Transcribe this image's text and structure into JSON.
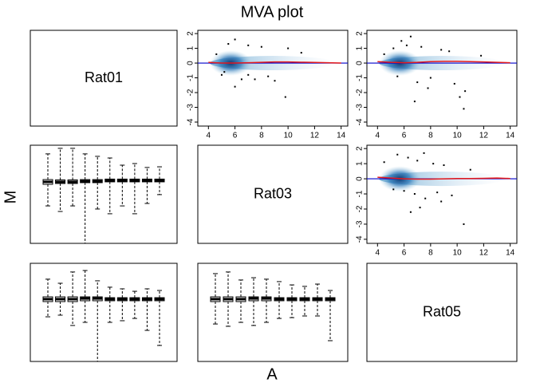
{
  "chart_data": {
    "type": "mva-pairs",
    "title": "MVA plot",
    "x_label": "A",
    "y_label": "M",
    "labels": [
      "Rat01",
      "Rat03",
      "Rat05"
    ],
    "scatter": [
      {
        "type": "scatter",
        "xlim": [
          3.2,
          14.5
        ],
        "ylim": [
          -4.27,
          2.22
        ],
        "xticks": [
          4,
          6,
          8,
          10,
          12,
          14
        ],
        "yticks": [
          2,
          1,
          0,
          -1,
          -2,
          -3,
          -4
        ],
        "density_color": "#2166ac",
        "point_color": "#000000",
        "points": {
          "x": [
            6,
            5.5,
            7,
            8,
            6.5,
            7.5,
            9,
            9.8,
            5,
            8.5,
            6,
            7,
            10,
            4.6,
            11,
            5.2
          ],
          "y": [
            1.6,
            1.3,
            1.2,
            1.1,
            -1.1,
            -1.1,
            -1.2,
            -2.3,
            -0.8,
            -0.9,
            -1.6,
            -0.8,
            1.0,
            0.6,
            0.7,
            -0.6
          ]
        },
        "loess": {
          "x": [
            4,
            5,
            6,
            7,
            8,
            9,
            10,
            11,
            12,
            13,
            14
          ],
          "y": [
            0.05,
            0,
            0,
            0.02,
            0.05,
            0.08,
            0.08,
            0.06,
            0.04,
            0.02,
            0
          ],
          "color": "#e41a1c"
        },
        "hline": 0,
        "hline_color": "#0000cc"
      },
      {
        "type": "scatter",
        "xlim": [
          3.2,
          14.5
        ],
        "ylim": [
          -4.27,
          2.22
        ],
        "xticks": [
          4,
          6,
          8,
          10,
          12,
          14
        ],
        "yticks": [
          2,
          1,
          0,
          -1,
          -2,
          -3,
          -4
        ],
        "density_color": "#2166ac",
        "point_color": "#000000",
        "points": {
          "x": [
            4.5,
            5.8,
            6.5,
            6.2,
            7.3,
            8.8,
            9.4,
            7,
            8,
            5.5,
            9.8,
            10.5,
            6.8,
            10.2,
            10.6,
            7.8,
            5.2,
            11.8
          ],
          "y": [
            0.6,
            1.5,
            1.8,
            1.2,
            1.1,
            0.9,
            0.8,
            -1.3,
            -1.0,
            -0.9,
            -1.4,
            -3.1,
            -2.6,
            -2.3,
            -1.9,
            -1.7,
            1.0,
            0.5
          ]
        },
        "loess": {
          "x": [
            4,
            5,
            6,
            7,
            8,
            9,
            10,
            11,
            12,
            13,
            14
          ],
          "y": [
            0.1,
            0.05,
            0.02,
            0.05,
            0.1,
            0.12,
            0.12,
            0.1,
            0.08,
            0.05,
            0.02
          ],
          "color": "#e41a1c"
        },
        "hline": 0,
        "hline_color": "#0000cc"
      },
      {
        "type": "scatter",
        "xlim": [
          3.2,
          14.5
        ],
        "ylim": [
          -4.27,
          2.22
        ],
        "xticks": [
          4,
          6,
          8,
          10,
          12,
          14
        ],
        "yticks": [
          2,
          1,
          0,
          -1,
          -2,
          -3,
          -4
        ],
        "density_color": "#2166ac",
        "point_color": "#000000",
        "points": {
          "x": [
            4.5,
            5.5,
            6.3,
            7,
            7.5,
            8.2,
            9,
            6,
            6.8,
            7.6,
            8.5,
            5.2,
            9.6,
            10.5,
            7.2,
            8.8,
            6.5,
            11
          ],
          "y": [
            1.1,
            1.6,
            1.4,
            1.2,
            1.7,
            1.0,
            0.9,
            -0.8,
            -1.0,
            -1.3,
            -0.9,
            -0.7,
            -1.1,
            -3.0,
            -1.9,
            -1.5,
            -2.2,
            0.6
          ]
        },
        "loess": {
          "x": [
            4,
            5,
            6,
            7,
            8,
            9,
            10,
            11,
            12,
            13,
            14
          ],
          "y": [
            0.1,
            0.05,
            0,
            -0.02,
            -0.02,
            0,
            0.02,
            0.02,
            0.03,
            0.05,
            0.02
          ],
          "color": "#e41a1c"
        },
        "hline": 0,
        "hline_color": "#0000cc"
      }
    ],
    "box": [
      {
        "type": "box",
        "ylim": [
          -4,
          2
        ],
        "boxes": [
          [
            -1.71,
            -0.39,
            -0.24,
            -0.1,
            1.47
          ],
          [
            -2.05,
            -0.34,
            -0.24,
            -0.12,
            1.81
          ],
          [
            -1.71,
            -0.34,
            -0.24,
            -0.12,
            1.81
          ],
          [
            -4.0,
            -0.29,
            -0.2,
            -0.1,
            1.47
          ],
          [
            -1.9,
            -0.29,
            -0.2,
            -0.1,
            1.32
          ],
          [
            -2.19,
            -0.24,
            -0.15,
            -0.07,
            1.22
          ],
          [
            -1.71,
            -0.24,
            -0.15,
            -0.07,
            0.78
          ],
          [
            -2.19,
            -0.24,
            -0.15,
            -0.07,
            0.88
          ],
          [
            -1.56,
            -0.24,
            -0.15,
            -0.07,
            0.64
          ],
          [
            -1.02,
            -0.24,
            -0.15,
            -0.07,
            0.68
          ]
        ]
      },
      {
        "type": "box",
        "ylim": [
          -4,
          2
        ],
        "boxes": [
          [
            -1.27,
            -0.34,
            -0.19,
            -0.05,
            1.03
          ],
          [
            -1.17,
            -0.34,
            -0.19,
            -0.05,
            0.78
          ],
          [
            -1.8,
            -0.34,
            -0.19,
            -0.05,
            1.47
          ],
          [
            -1.61,
            -0.29,
            -0.15,
            -0.05,
            1.56
          ],
          [
            -4.0,
            -0.29,
            -0.15,
            -0.05,
            0.93
          ],
          [
            -1.61,
            -0.29,
            -0.19,
            -0.1,
            0.54
          ],
          [
            -1.51,
            -0.29,
            -0.19,
            -0.1,
            0.44
          ],
          [
            -1.37,
            -0.29,
            -0.19,
            -0.1,
            0.29
          ],
          [
            -2.1,
            -0.29,
            -0.19,
            -0.1,
            0.44
          ],
          [
            -3.02,
            -0.29,
            -0.19,
            -0.1,
            0.34
          ]
        ]
      },
      {
        "type": "box",
        "ylim": [
          -4,
          2
        ],
        "boxes": [
          [
            -1.71,
            -0.34,
            -0.19,
            -0.05,
            1.37
          ],
          [
            -1.85,
            -0.34,
            -0.19,
            -0.05,
            1.47
          ],
          [
            -1.61,
            -0.34,
            -0.19,
            -0.05,
            0.98
          ],
          [
            -1.8,
            -0.29,
            -0.15,
            -0.05,
            1.12
          ],
          [
            -1.61,
            -0.29,
            -0.15,
            -0.05,
            1.03
          ],
          [
            -1.37,
            -0.29,
            -0.19,
            -0.1,
            0.88
          ],
          [
            -1.32,
            -0.29,
            -0.19,
            -0.1,
            0.68
          ],
          [
            -1.22,
            -0.29,
            -0.19,
            -0.1,
            0.59
          ],
          [
            -1.22,
            -0.29,
            -0.19,
            -0.1,
            0.73
          ],
          [
            -2.73,
            -0.29,
            -0.19,
            -0.1,
            0.34
          ]
        ]
      }
    ]
  }
}
